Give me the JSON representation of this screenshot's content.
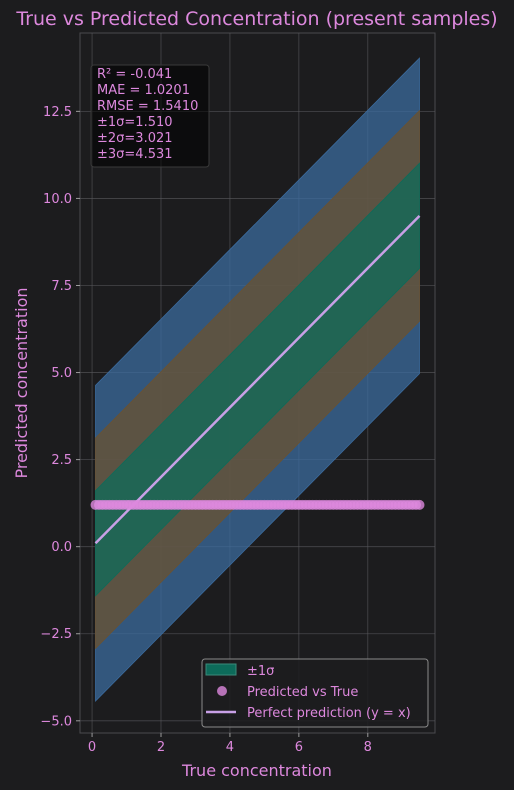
{
  "chart_data": {
    "type": "scatter",
    "title": "True vs Predicted Concentration (present samples)",
    "xlabel": "True concentration",
    "ylabel": "Predicted concentration",
    "xlim": [
      -0.35,
      9.95
    ],
    "ylim": [
      -5.35,
      14.75
    ],
    "xticks": [
      0,
      2,
      4,
      6,
      8
    ],
    "xtick_labels": [
      "0",
      "2",
      "4",
      "6",
      "8"
    ],
    "yticks": [
      -5.0,
      -2.5,
      0.0,
      2.5,
      5.0,
      7.5,
      10.0,
      12.5
    ],
    "ytick_labels": [
      "−5.0",
      "−2.5",
      "0.0",
      "2.5",
      "5.0",
      "7.5",
      "10.0",
      "12.5"
    ],
    "grid": true,
    "legend_position": "bottom-right",
    "stats_lines": [
      "R² = -0.041",
      "MAE = 1.0201",
      "RMSE = 1.5410",
      "±1σ=1.510",
      "±2σ=3.021",
      "±3σ=4.531"
    ],
    "perfect_line": {
      "x": [
        0.1,
        9.5
      ],
      "y": [
        0.1,
        9.5
      ]
    },
    "bands": [
      {
        "name": "±3σ",
        "halfwidth": 4.531,
        "color": "#3b6b9e"
      },
      {
        "name": "±2σ",
        "halfwidth": 3.021,
        "color": "#6b5230"
      },
      {
        "name": "±1σ",
        "halfwidth": 1.51,
        "color": "#0d6b5a"
      }
    ],
    "scatter": {
      "x": [
        0.1,
        0.2,
        0.3,
        0.4,
        0.5,
        0.6,
        0.7,
        0.8,
        0.9,
        1.0,
        1.1,
        1.2,
        1.3,
        1.4,
        1.5,
        1.6,
        1.7,
        1.8,
        1.9,
        2.0,
        2.1,
        2.2,
        2.3,
        2.4,
        2.5,
        2.6,
        2.7,
        2.8,
        2.9,
        3.0,
        3.1,
        3.2,
        3.3,
        3.4,
        3.5,
        3.6,
        3.7,
        3.8,
        3.9,
        4.0,
        4.1,
        4.2,
        4.3,
        4.4,
        4.5,
        4.6,
        4.7,
        4.8,
        4.9,
        5.0,
        5.1,
        5.2,
        5.3,
        5.4,
        5.5,
        5.6,
        5.7,
        5.8,
        5.9,
        6.0,
        6.1,
        6.2,
        6.3,
        6.4,
        6.5,
        6.6,
        6.7,
        6.8,
        6.9,
        7.0,
        7.1,
        7.2,
        7.3,
        7.4,
        7.5,
        7.6,
        7.7,
        7.8,
        7.9,
        8.0,
        8.1,
        8.2,
        8.3,
        8.4,
        8.5,
        8.6,
        8.7,
        8.8,
        8.9,
        9.0,
        9.1,
        9.2,
        9.3,
        9.4,
        9.5
      ],
      "y": 1.2
    },
    "legend": [
      {
        "label": "±1σ",
        "kind": "patch"
      },
      {
        "label": "Predicted vs True",
        "kind": "marker"
      },
      {
        "label": "Perfect prediction (y = x)",
        "kind": "line"
      }
    ],
    "colors": {
      "background": "#1c1c1e",
      "text": "#dd88dd",
      "scatter": "#dd88dd",
      "line": "#c8a0e6",
      "grid": "#5a5a5e"
    }
  }
}
